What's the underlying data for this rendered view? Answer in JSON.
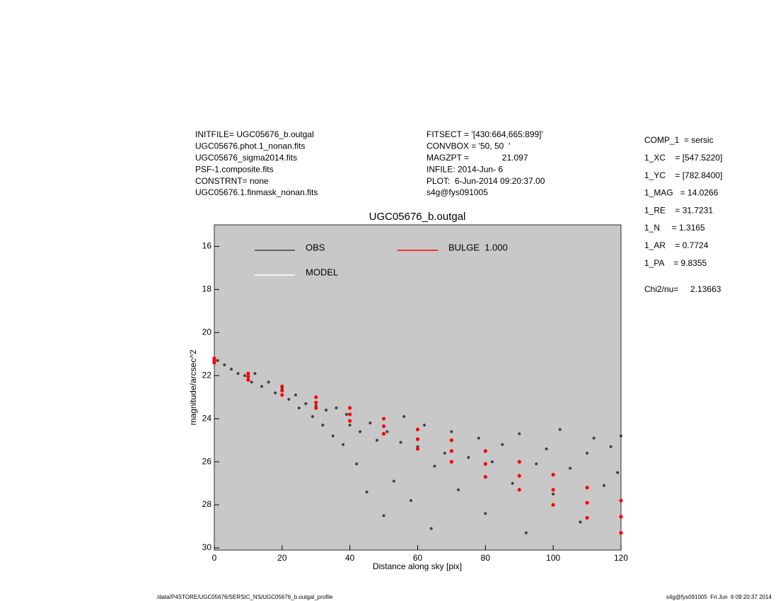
{
  "header_left": [
    "INITFILE= UGC05676_b.outgal",
    "UGC05676.phot.1_nonan.fits",
    "UGC05676_sigma2014.fits",
    "PSF-1.composite.fits",
    "CONSTRNT= none",
    "UGC05676.1.finmask_nonan.fits"
  ],
  "header_mid": [
    "FITSECT = '[430:664,665:899]'",
    "CONVBOX = '50, 50  '",
    "MAGZPT =              21.097",
    "INFILE: 2014-Jun- 6",
    "PLOT:  6-Jun-2014 09:20:37.00",
    "s4g@fys091005"
  ],
  "params": [
    "COMP_1  = sersic",
    "1_XC    = [547.5220]",
    "1_YC    = [782.8400]",
    "1_MAG   = 14.0266",
    "1_RE    = 31.7231",
    "1_N     = 1.3165",
    "1_AR    = 0.7724",
    "1_PA    = 9.8355"
  ],
  "chi": "Chi2/nu=     2.13663",
  "footer_left": "/data/P4STORE/UGC05676/SERSIC_NS/UGC05676_b.outgal_profile",
  "footer_right": "s4g@fys091005  Fri Jun  6 09:20:37 2014",
  "chart_data": {
    "type": "scatter",
    "title": "UGC05676_b.outgal",
    "x_label": "Distance along sky [pix]",
    "y_label": "magnitude/arcsec^2",
    "xlim": [
      0,
      120
    ],
    "xticks": [
      0,
      20,
      40,
      60,
      80,
      100,
      120
    ],
    "ylim": [
      30.1,
      15
    ],
    "yticks": [
      16,
      18,
      20,
      22,
      24,
      26,
      28,
      30
    ],
    "background": "#c8c8c8",
    "grid": false,
    "series": [
      {
        "name": "OBS",
        "color": "#404040",
        "x": [
          1,
          3,
          5,
          7,
          9,
          11,
          12,
          14,
          16,
          18,
          20,
          22,
          24,
          25,
          27,
          29,
          30,
          32,
          33,
          35,
          36,
          38,
          39,
          40,
          42,
          43,
          45,
          46,
          48,
          50,
          51,
          53,
          55,
          56,
          58,
          60,
          62,
          64,
          65,
          68,
          70,
          72,
          75,
          78,
          80,
          82,
          85,
          88,
          90,
          92,
          95,
          98,
          100,
          102,
          105,
          108,
          110,
          112,
          115,
          117,
          119,
          120
        ],
        "values": [
          21.3,
          21.5,
          21.7,
          21.9,
          22.0,
          22.3,
          21.9,
          22.5,
          22.3,
          22.8,
          22.6,
          23.1,
          22.9,
          23.5,
          23.3,
          23.9,
          23.4,
          24.3,
          23.6,
          24.8,
          23.5,
          25.2,
          23.8,
          24.3,
          26.1,
          24.6,
          27.4,
          24.2,
          25.0,
          28.5,
          24.6,
          26.9,
          25.1,
          23.9,
          27.8,
          25.3,
          24.3,
          29.1,
          26.2,
          25.6,
          24.6,
          27.3,
          25.8,
          24.9,
          28.4,
          26.0,
          25.2,
          27.0,
          24.7,
          29.3,
          26.1,
          25.4,
          27.5,
          24.5,
          26.3,
          28.8,
          25.6,
          24.9,
          27.1,
          25.3,
          26.5,
          24.8
        ]
      },
      {
        "name": "MODEL",
        "color": "#ffffff",
        "x": [],
        "values": []
      },
      {
        "name": "BULGE  1.000",
        "color": "#ff0000",
        "x": [
          0,
          10,
          20,
          30,
          40,
          50,
          60,
          70,
          80,
          90,
          100,
          110,
          120,
          0,
          10,
          20,
          30,
          40,
          50,
          60,
          70,
          80,
          90,
          100,
          110,
          120,
          0,
          10,
          20,
          30,
          40,
          50,
          60,
          70,
          80,
          90,
          100,
          110,
          120
        ],
        "values": [
          21.2,
          21.9,
          22.5,
          23.0,
          23.5,
          24.0,
          24.5,
          25.0,
          25.5,
          26.0,
          26.6,
          27.2,
          27.8,
          21.3,
          22.05,
          22.7,
          23.25,
          23.8,
          24.35,
          24.95,
          25.5,
          26.1,
          26.65,
          27.3,
          27.9,
          28.55,
          21.4,
          22.2,
          22.9,
          23.5,
          24.1,
          24.7,
          25.4,
          26.0,
          26.7,
          27.3,
          28.0,
          28.6,
          29.3
        ]
      }
    ]
  }
}
